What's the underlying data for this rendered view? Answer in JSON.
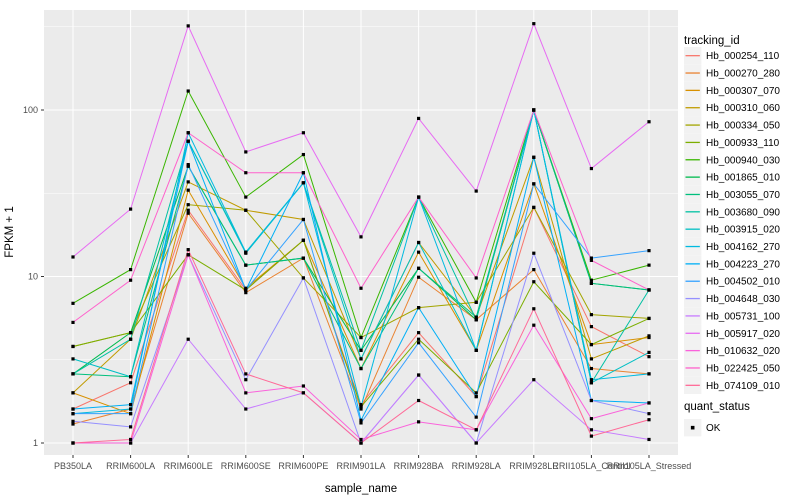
{
  "chart_data": {
    "type": "line",
    "title": "",
    "xlabel": "sample_name",
    "ylabel": "FPKM + 1",
    "y_scale": "log10",
    "y_ticks": [
      1,
      10,
      100
    ],
    "ylim": [
      0.85,
      400
    ],
    "grid": true,
    "legend_position": "right",
    "panel_bg": "#EBEBEB",
    "grid_color": "#FFFFFF",
    "point_color": "#000000",
    "axis_text_color": "#4D4D4D",
    "legend_key_bg": "#F2F2F2",
    "categories": [
      "PB350LA",
      "RRIM600LA",
      "RRIM600LE",
      "RRIM600SE",
      "RRIM600PE",
      "RRIM901LA",
      "RRIM928BA",
      "RRIM928LA",
      "RRIM928LE",
      "RRII105LA_Control",
      "RRII105LA_Stressed"
    ],
    "series": [
      {
        "name": "Hb_000254_110",
        "color": "#F8766D",
        "values": [
          1.6,
          2.3,
          25,
          8.3,
          16.5,
          1.7,
          4.6,
          1.9,
          26,
          5.0,
          3.3
        ]
      },
      {
        "name": "Hb_000270_280",
        "color": "#EA8331",
        "values": [
          1.3,
          1.6,
          24,
          8.0,
          12.9,
          1.6,
          9.9,
          5.5,
          11,
          2.8,
          2.6
        ]
      },
      {
        "name": "Hb_000307_070",
        "color": "#D89000",
        "values": [
          2.0,
          1.5,
          33,
          8.5,
          16.5,
          2.8,
          14,
          3.6,
          36,
          3.9,
          4.3
        ]
      },
      {
        "name": "Hb_000310_060",
        "color": "#C09B00",
        "values": [
          2.0,
          4.2,
          37,
          25,
          22,
          3.2,
          16,
          5.7,
          52,
          3.2,
          4.4
        ]
      },
      {
        "name": "Hb_000334_050",
        "color": "#A3A500",
        "values": [
          3.8,
          4.6,
          27,
          25,
          9.8,
          4.3,
          6.5,
          7.0,
          26,
          5.9,
          5.6
        ]
      },
      {
        "name": "Hb_000933_110",
        "color": "#7CAE00",
        "values": [
          3.8,
          4.6,
          13.5,
          8.3,
          16.5,
          1.65,
          4.2,
          2.0,
          9.3,
          3.9,
          5.6
        ]
      },
      {
        "name": "Hb_000940_030",
        "color": "#39B600",
        "values": [
          6.9,
          11,
          130,
          30,
          54,
          4.3,
          30,
          7.0,
          100,
          9.5,
          11.7
        ]
      },
      {
        "name": "Hb_001865_010",
        "color": "#00BB4E",
        "values": [
          2.6,
          4.6,
          46,
          11.7,
          12.9,
          3.6,
          11.2,
          5.5,
          100,
          9.1,
          8.3
        ]
      },
      {
        "name": "Hb_003055_070",
        "color": "#00BF7D",
        "values": [
          2.6,
          2.5,
          46,
          11.7,
          12.9,
          2.8,
          11.2,
          5.7,
          100,
          9.1,
          8.3
        ]
      },
      {
        "name": "Hb_003680_090",
        "color": "#00C1A3",
        "values": [
          2.6,
          4.2,
          65,
          14,
          36.5,
          3.6,
          30,
          5.5,
          100,
          2.3,
          8.3
        ]
      },
      {
        "name": "Hb_003915_020",
        "color": "#00BFC4",
        "values": [
          3.2,
          2.5,
          65,
          13.8,
          36.5,
          3.2,
          16,
          3.6,
          100,
          2.3,
          3.5
        ]
      },
      {
        "name": "Hb_004162_270",
        "color": "#00BAE0",
        "values": [
          1.5,
          1.6,
          73,
          14,
          36.5,
          1.65,
          30,
          3.6,
          100,
          2.4,
          2.6
        ]
      },
      {
        "name": "Hb_004223_270",
        "color": "#00B0F6",
        "values": [
          1.6,
          1.7,
          65,
          8.3,
          42,
          1.37,
          6.5,
          1.9,
          52,
          1.8,
          1.74
        ]
      },
      {
        "name": "Hb_004502_010",
        "color": "#35A2FF",
        "values": [
          1.5,
          1.5,
          47,
          8.3,
          22,
          1.32,
          4.0,
          1.43,
          36,
          12.9,
          14.3
        ]
      },
      {
        "name": "Hb_004648_030",
        "color": "#9590FF",
        "values": [
          1.35,
          1.25,
          13.5,
          2.4,
          9.8,
          1.0,
          2.56,
          1.0,
          13.8,
          1.8,
          1.5
        ]
      },
      {
        "name": "Hb_005731_100",
        "color": "#C77CFF",
        "values": [
          1.0,
          1.0,
          4.2,
          1.6,
          2.0,
          1.0,
          2.56,
          1.0,
          2.4,
          1.2,
          1.05
        ]
      },
      {
        "name": "Hb_005917_020",
        "color": "#E76BF3",
        "values": [
          13.1,
          25.4,
          320,
          56,
          73,
          17.3,
          89,
          32.6,
          330,
          44.5,
          85
        ]
      },
      {
        "name": "Hb_010632_020",
        "color": "#FA62DB",
        "values": [
          1.0,
          1.0,
          13.5,
          2.0,
          2.2,
          1.05,
          1.34,
          1.2,
          5.1,
          1.4,
          1.74
        ]
      },
      {
        "name": "Hb_022425_050",
        "color": "#FF61CC",
        "values": [
          5.3,
          9.5,
          73,
          42,
          42,
          8.5,
          30,
          9.8,
          100,
          12.5,
          8.3
        ]
      },
      {
        "name": "Hb_074109_010",
        "color": "#FF6A98",
        "values": [
          1.0,
          1.05,
          14.5,
          2.6,
          2.0,
          1.0,
          1.8,
          1.2,
          6.4,
          1.1,
          1.38
        ]
      }
    ],
    "legend": {
      "tracking_id_title": "tracking_id",
      "quant_status_title": "quant_status",
      "quant_status_items": [
        {
          "label": "OK",
          "marker": "black-square"
        }
      ]
    }
  }
}
